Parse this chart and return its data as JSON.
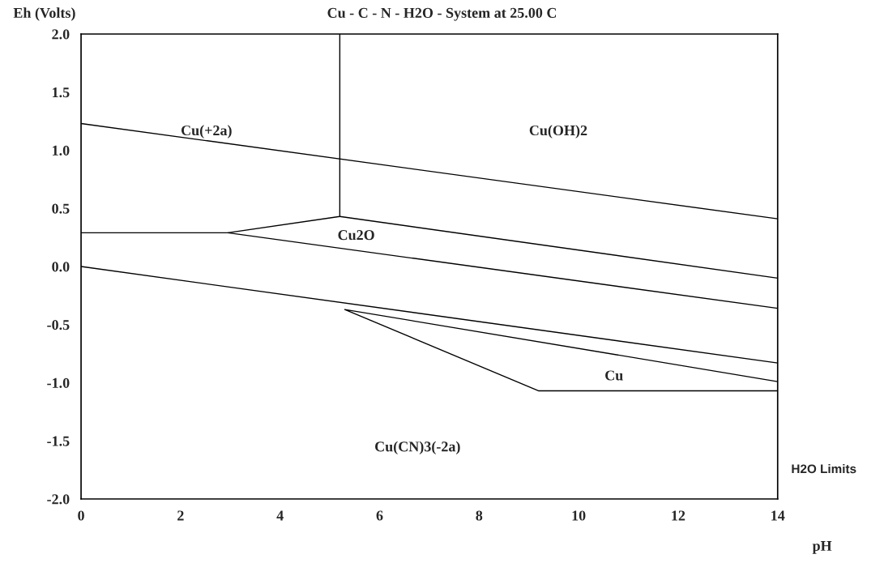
{
  "chart_data": {
    "type": "line",
    "title": "Cu - C - N - H2O - System at 25.00 C",
    "xlabel": "pH",
    "ylabel": "Eh (Volts)",
    "xlim": [
      0,
      14
    ],
    "ylim": [
      -2.0,
      2.0
    ],
    "xticks": [
      0,
      2,
      4,
      6,
      8,
      10,
      12,
      14
    ],
    "yticks": [
      {
        "value": -2.0,
        "label": "-2.0"
      },
      {
        "value": -1.5,
        "label": "-1.5"
      },
      {
        "value": -1.0,
        "label": "-1.0"
      },
      {
        "value": -0.5,
        "label": "-0.5"
      },
      {
        "value": 0.0,
        "label": "0.0"
      },
      {
        "value": 0.5,
        "label": "0.5"
      },
      {
        "value": 1.0,
        "label": "1.0"
      },
      {
        "value": 1.5,
        "label": "1.5"
      },
      {
        "value": 2.0,
        "label": "2.0"
      }
    ],
    "grid": false,
    "legend": false,
    "marker": "none",
    "line_style": "solid",
    "series": [
      {
        "color": "#000000",
        "x": [
          0,
          14
        ],
        "values": [
          1.23,
          0.41
        ]
      },
      {
        "color": "#000000",
        "x": [
          0,
          14
        ],
        "values": [
          0.0,
          -0.83
        ]
      },
      {
        "color": "#000000",
        "x": [
          0,
          2.95,
          5.2,
          5.2
        ],
        "values": [
          0.29,
          0.29,
          0.43,
          2.0
        ]
      },
      {
        "color": "#000000",
        "x": [
          5.2,
          14
        ],
        "values": [
          0.43,
          -0.1
        ]
      },
      {
        "color": "#000000",
        "x": [
          2.95,
          14
        ],
        "values": [
          0.29,
          -0.36
        ]
      },
      {
        "color": "#000000",
        "x": [
          14,
          5.3,
          9.2,
          14
        ],
        "values": [
          -0.99,
          -0.37,
          -1.07,
          -1.07
        ]
      }
    ],
    "annotations": [
      "Cu(+2a)",
      "Cu(OH)2",
      "Cu2O",
      "Cu",
      "Cu(CN)3(-2a)",
      "H2O Limits"
    ]
  }
}
